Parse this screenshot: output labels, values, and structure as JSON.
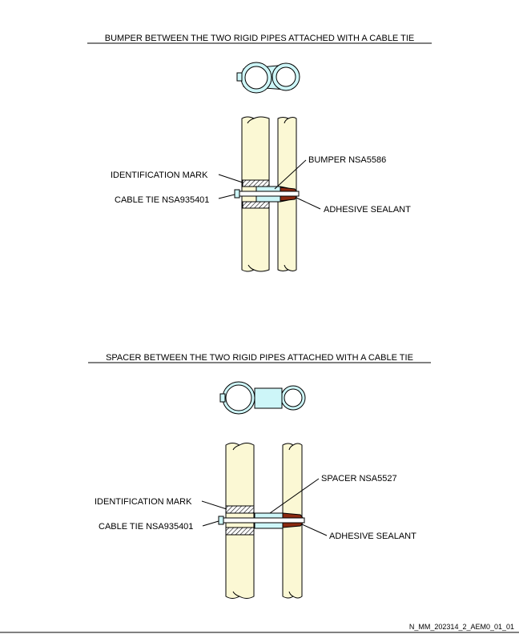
{
  "figure_1": {
    "title": "BUMPER BETWEEN THE TWO RIGID PIPES ATTACHED WITH A CABLE TIE",
    "labels": {
      "identification_mark": "IDENTIFICATION MARK",
      "cable_tie": "CABLE TIE NSA935401",
      "bumper": "BUMPER NSA5586",
      "adhesive_sealant": "ADHESIVE SEALANT"
    }
  },
  "figure_2": {
    "title": "SPACER BETWEEN THE TWO RIGID PIPES ATTACHED WITH A CABLE TIE",
    "labels": {
      "identification_mark": "IDENTIFICATION MARK",
      "cable_tie": "CABLE TIE NSA935401",
      "spacer": "SPACER NSA5527",
      "adhesive_sealant": "ADHESIVE SEALANT"
    }
  },
  "footer": {
    "reference": "N_MM_202314_2_AEM0_01_01"
  },
  "colors": {
    "pipe": "#fbf8d4",
    "bumper": "#cdf6f8",
    "sealant": "#8b2a10",
    "outline": "#000000"
  }
}
